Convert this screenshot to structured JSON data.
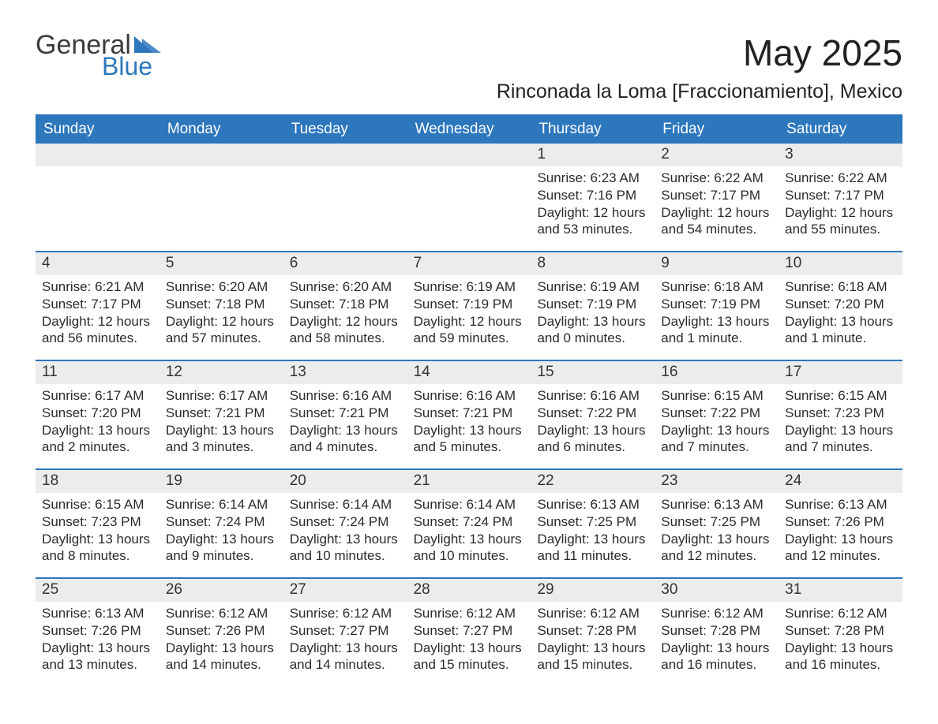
{
  "logo": {
    "text1": "General",
    "text2": "Blue",
    "tri_color": "#2d77bd"
  },
  "title": "May 2025",
  "location": "Rinconada la Loma [Fraccionamiento], Mexico",
  "colors": {
    "header_bg": "#2d77bd",
    "header_text": "#ffffff",
    "daynum_bg": "#ececec",
    "body_text": "#2b2b2b",
    "rule": "#2d77bd",
    "background": "#ffffff"
  },
  "day_headers": [
    "Sunday",
    "Monday",
    "Tuesday",
    "Wednesday",
    "Thursday",
    "Friday",
    "Saturday"
  ],
  "weeks": [
    [
      {
        "blank": true
      },
      {
        "blank": true
      },
      {
        "blank": true
      },
      {
        "blank": true
      },
      {
        "n": "1",
        "sunrise": "6:23 AM",
        "sunset": "7:16 PM",
        "daylight": "12 hours and 53 minutes."
      },
      {
        "n": "2",
        "sunrise": "6:22 AM",
        "sunset": "7:17 PM",
        "daylight": "12 hours and 54 minutes."
      },
      {
        "n": "3",
        "sunrise": "6:22 AM",
        "sunset": "7:17 PM",
        "daylight": "12 hours and 55 minutes."
      }
    ],
    [
      {
        "n": "4",
        "sunrise": "6:21 AM",
        "sunset": "7:17 PM",
        "daylight": "12 hours and 56 minutes."
      },
      {
        "n": "5",
        "sunrise": "6:20 AM",
        "sunset": "7:18 PM",
        "daylight": "12 hours and 57 minutes."
      },
      {
        "n": "6",
        "sunrise": "6:20 AM",
        "sunset": "7:18 PM",
        "daylight": "12 hours and 58 minutes."
      },
      {
        "n": "7",
        "sunrise": "6:19 AM",
        "sunset": "7:19 PM",
        "daylight": "12 hours and 59 minutes."
      },
      {
        "n": "8",
        "sunrise": "6:19 AM",
        "sunset": "7:19 PM",
        "daylight": "13 hours and 0 minutes."
      },
      {
        "n": "9",
        "sunrise": "6:18 AM",
        "sunset": "7:19 PM",
        "daylight": "13 hours and 1 minute."
      },
      {
        "n": "10",
        "sunrise": "6:18 AM",
        "sunset": "7:20 PM",
        "daylight": "13 hours and 1 minute."
      }
    ],
    [
      {
        "n": "11",
        "sunrise": "6:17 AM",
        "sunset": "7:20 PM",
        "daylight": "13 hours and 2 minutes."
      },
      {
        "n": "12",
        "sunrise": "6:17 AM",
        "sunset": "7:21 PM",
        "daylight": "13 hours and 3 minutes."
      },
      {
        "n": "13",
        "sunrise": "6:16 AM",
        "sunset": "7:21 PM",
        "daylight": "13 hours and 4 minutes."
      },
      {
        "n": "14",
        "sunrise": "6:16 AM",
        "sunset": "7:21 PM",
        "daylight": "13 hours and 5 minutes."
      },
      {
        "n": "15",
        "sunrise": "6:16 AM",
        "sunset": "7:22 PM",
        "daylight": "13 hours and 6 minutes."
      },
      {
        "n": "16",
        "sunrise": "6:15 AM",
        "sunset": "7:22 PM",
        "daylight": "13 hours and 7 minutes."
      },
      {
        "n": "17",
        "sunrise": "6:15 AM",
        "sunset": "7:23 PM",
        "daylight": "13 hours and 7 minutes."
      }
    ],
    [
      {
        "n": "18",
        "sunrise": "6:15 AM",
        "sunset": "7:23 PM",
        "daylight": "13 hours and 8 minutes."
      },
      {
        "n": "19",
        "sunrise": "6:14 AM",
        "sunset": "7:24 PM",
        "daylight": "13 hours and 9 minutes."
      },
      {
        "n": "20",
        "sunrise": "6:14 AM",
        "sunset": "7:24 PM",
        "daylight": "13 hours and 10 minutes."
      },
      {
        "n": "21",
        "sunrise": "6:14 AM",
        "sunset": "7:24 PM",
        "daylight": "13 hours and 10 minutes."
      },
      {
        "n": "22",
        "sunrise": "6:13 AM",
        "sunset": "7:25 PM",
        "daylight": "13 hours and 11 minutes."
      },
      {
        "n": "23",
        "sunrise": "6:13 AM",
        "sunset": "7:25 PM",
        "daylight": "13 hours and 12 minutes."
      },
      {
        "n": "24",
        "sunrise": "6:13 AM",
        "sunset": "7:26 PM",
        "daylight": "13 hours and 12 minutes."
      }
    ],
    [
      {
        "n": "25",
        "sunrise": "6:13 AM",
        "sunset": "7:26 PM",
        "daylight": "13 hours and 13 minutes."
      },
      {
        "n": "26",
        "sunrise": "6:12 AM",
        "sunset": "7:26 PM",
        "daylight": "13 hours and 14 minutes."
      },
      {
        "n": "27",
        "sunrise": "6:12 AM",
        "sunset": "7:27 PM",
        "daylight": "13 hours and 14 minutes."
      },
      {
        "n": "28",
        "sunrise": "6:12 AM",
        "sunset": "7:27 PM",
        "daylight": "13 hours and 15 minutes."
      },
      {
        "n": "29",
        "sunrise": "6:12 AM",
        "sunset": "7:28 PM",
        "daylight": "13 hours and 15 minutes."
      },
      {
        "n": "30",
        "sunrise": "6:12 AM",
        "sunset": "7:28 PM",
        "daylight": "13 hours and 16 minutes."
      },
      {
        "n": "31",
        "sunrise": "6:12 AM",
        "sunset": "7:28 PM",
        "daylight": "13 hours and 16 minutes."
      }
    ]
  ],
  "labels": {
    "sunrise": "Sunrise: ",
    "sunset": "Sunset: ",
    "daylight": "Daylight: "
  }
}
